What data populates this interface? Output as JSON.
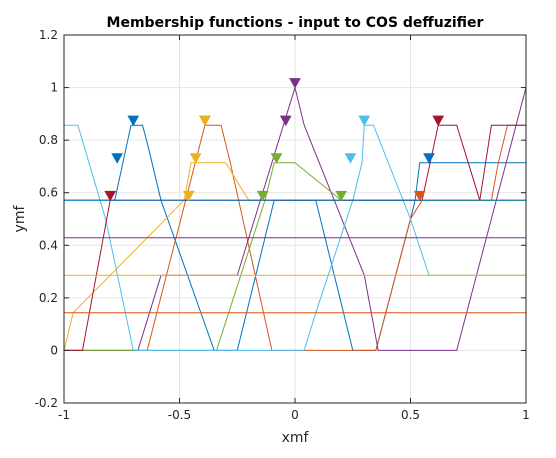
{
  "chart_data": {
    "type": "line",
    "title": "Membership functions - input to COS deffuzifier",
    "xlabel": "xmf",
    "ylabel": "ymf",
    "xlim": [
      -1,
      1
    ],
    "ylim": [
      -0.2,
      1.2
    ],
    "grid": true,
    "xticks": [
      -1,
      -0.5,
      0,
      0.5,
      1
    ],
    "xtick_labels": [
      "-1",
      "-0.5",
      "0",
      "0.5",
      "1"
    ],
    "yticks": [
      -0.2,
      0,
      0.2,
      0.4,
      0.6,
      0.8,
      1,
      1.2
    ],
    "ytick_labels": [
      "-0.2",
      "0",
      "0.2",
      "0.4",
      "0.6",
      "0.8",
      "1",
      "1.2"
    ],
    "series": [
      {
        "color": "#0072bd",
        "x": [
          -1,
          -0.98,
          -0.78,
          -0.71,
          -0.66,
          -0.64,
          -0.58,
          -0.35,
          -0.32,
          -0.3,
          -0.25,
          -0.09,
          -0.04,
          0.04,
          0.09,
          0.25,
          0.3,
          0.32,
          0.35,
          0.5,
          0.52,
          0.54,
          0.6,
          0.85,
          1
        ],
        "y": [
          0.572,
          0.572,
          0.572,
          0.857,
          0.857,
          0.79,
          0.571,
          0,
          0,
          0,
          0,
          0.571,
          0.571,
          0.571,
          0.571,
          0,
          0,
          0,
          0,
          0.5,
          0.571,
          0.714,
          0.714,
          0.714,
          0.714
        ]
      },
      {
        "color": "#d95319",
        "x": [
          -1,
          -0.64,
          -0.39,
          -0.32,
          -0.28,
          -0.1,
          -0.04,
          0,
          0.32,
          0.35,
          0.5,
          0.55,
          0.58,
          0.85,
          0.88,
          0.92,
          1
        ],
        "y": [
          0,
          0,
          0.857,
          0.857,
          0.714,
          0,
          0,
          0,
          0,
          0,
          0.5,
          0.571,
          0.571,
          0.571,
          0.714,
          0.857,
          0.857
        ]
      },
      {
        "color": "#edb120",
        "x": [
          -1,
          -0.96,
          -0.48,
          -0.45,
          -0.43,
          -0.3,
          -0.2,
          0,
          1
        ],
        "y": [
          0,
          0.143,
          0.571,
          0.714,
          0.714,
          0.714,
          0.571,
          0.571,
          0.571
        ]
      },
      {
        "color": "#7e2f8e",
        "x": [
          -1,
          -0.68,
          -0.68,
          -0.63,
          -0.58,
          -0.25,
          -0.05,
          0,
          0.04,
          0.3,
          0.36,
          0.56,
          0.62,
          0.7,
          1
        ],
        "y": [
          0,
          0,
          0,
          0.143,
          0.286,
          0.286,
          0.857,
          1,
          0.857,
          0.286,
          0,
          0,
          0,
          0,
          1
        ]
      },
      {
        "color": "#77ac30",
        "x": [
          -1,
          -0.34,
          -0.13,
          -0.09,
          -0.06,
          0,
          0.2,
          0.27,
          1
        ],
        "y": [
          0,
          0,
          0.571,
          0.714,
          0.714,
          0.714,
          0.571,
          0.571,
          0.571
        ]
      },
      {
        "color": "#4dbeee",
        "x": [
          -1,
          -0.94,
          -0.82,
          -0.7,
          -0.5,
          0.04,
          0.09,
          0.25,
          0.29,
          0.3,
          0.34,
          0.5,
          0.58,
          0.6,
          1
        ],
        "y": [
          0.857,
          0.857,
          0.5,
          0,
          0,
          0,
          0.143,
          0.571,
          0.714,
          0.857,
          0.857,
          0.5,
          0.286,
          0.286,
          0.286
        ]
      },
      {
        "color": "#a2142f",
        "x": [
          -1,
          -0.92,
          -0.89,
          -0.8,
          -0.75,
          -0.72,
          -0.5,
          0.4,
          0.48,
          0.55,
          0.62,
          0.66,
          0.7,
          0.8,
          0.85,
          1
        ],
        "y": [
          0,
          0,
          0.143,
          0.571,
          0.571,
          0.571,
          0.571,
          0.571,
          0.571,
          0.571,
          0.857,
          0.857,
          0.857,
          0.571,
          0.857,
          0.857
        ]
      },
      {
        "color": "#0072bd",
        "x": [
          -1,
          1
        ],
        "y": [
          0.571,
          0.571
        ]
      },
      {
        "color": "#d95319",
        "x": [
          -1,
          1
        ],
        "y": [
          0.143,
          0.143
        ]
      },
      {
        "color": "#edb120",
        "x": [
          -1,
          1
        ],
        "y": [
          0.286,
          0.286
        ]
      },
      {
        "color": "#7e2f8e",
        "x": [
          -1,
          1
        ],
        "y": [
          0.429,
          0.429
        ]
      }
    ],
    "markers": [
      {
        "x": -0.8,
        "y": 0.571,
        "color": "#a2142f"
      },
      {
        "x": -0.77,
        "y": 0.714,
        "color": "#0072bd"
      },
      {
        "x": -0.7,
        "y": 0.857,
        "color": "#0072bd"
      },
      {
        "x": -0.46,
        "y": 0.571,
        "color": "#edb120"
      },
      {
        "x": -0.43,
        "y": 0.714,
        "color": "#edb120"
      },
      {
        "x": -0.39,
        "y": 0.857,
        "color": "#d95319"
      },
      {
        "x": -0.39,
        "y": 0.857,
        "color": "#edb120"
      },
      {
        "x": -0.14,
        "y": 0.571,
        "color": "#77ac30"
      },
      {
        "x": -0.08,
        "y": 0.714,
        "color": "#77ac30"
      },
      {
        "x": -0.04,
        "y": 0.857,
        "color": "#7e2f8e"
      },
      {
        "x": 0,
        "y": 1,
        "color": "#7e2f8e"
      },
      {
        "x": 0.2,
        "y": 0.571,
        "color": "#77ac30"
      },
      {
        "x": 0.24,
        "y": 0.714,
        "color": "#4dbeee"
      },
      {
        "x": 0.3,
        "y": 0.857,
        "color": "#4dbeee"
      },
      {
        "x": 0.54,
        "y": 0.571,
        "color": "#d95319"
      },
      {
        "x": 0.58,
        "y": 0.714,
        "color": "#0072bd"
      },
      {
        "x": 0.62,
        "y": 0.857,
        "color": "#a2142f"
      }
    ]
  }
}
